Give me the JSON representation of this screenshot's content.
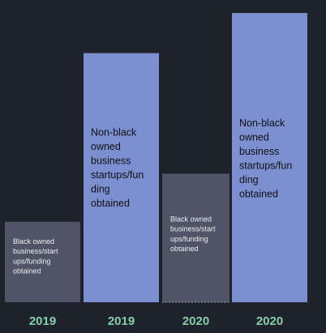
{
  "chart_data": {
    "type": "bar",
    "categories": [
      "2019",
      "2019",
      "2020",
      "2020"
    ],
    "values": [
      1,
      3.1,
      1.6,
      3.6
    ],
    "bar_labels": [
      "Black owned business/startups/funding obtained",
      "Non-black owned business startups/funding obtained",
      "Black owned business/startups/funding obtained",
      "Non-black owned business startups/funding obtained"
    ],
    "bar_label_lines": [
      [
        "Black owned",
        "business/start",
        "ups/funding",
        "obtained"
      ],
      [
        "Non-black",
        "owned",
        "business",
        "startups/fun",
        "ding",
        "obtained"
      ],
      [
        "Black owned",
        "business/start",
        "ups/funding",
        "obtained"
      ],
      [
        "Non-black",
        "owned",
        "business",
        "startups/fun",
        "ding",
        "obtained"
      ]
    ],
    "colors": [
      "#4f5566",
      "#7b8fd1",
      "#4f5566",
      "#7b8fd1"
    ],
    "label_color": "#86d0a9",
    "label_text_colors": [
      "#eceff4",
      "#111111",
      "#eceff4",
      "#111111"
    ],
    "ylim": [
      0,
      3.6
    ],
    "title": "",
    "xlabel": "",
    "ylabel": "",
    "grid": false,
    "legend": "none"
  }
}
